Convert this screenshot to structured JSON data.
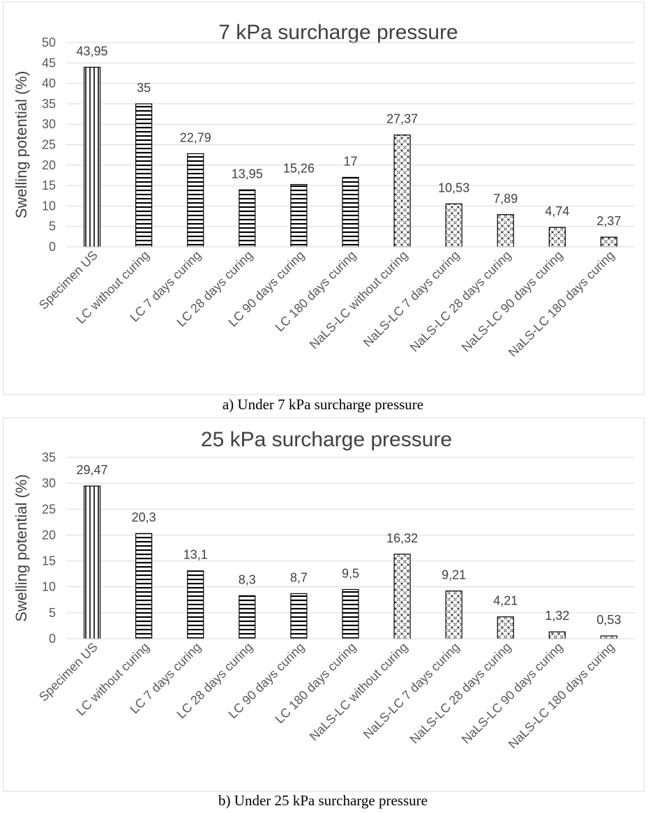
{
  "chart_data": [
    {
      "type": "bar",
      "title": "7 kPa surcharge pressure",
      "ylabel": "Swelling potential (%)",
      "xlabel": "",
      "ylim": [
        0,
        50
      ],
      "yticks": [
        0,
        5,
        10,
        15,
        20,
        25,
        30,
        35,
        40,
        45,
        50
      ],
      "grid": true,
      "categories": [
        "Specimen US",
        "LC without curing",
        "LC 7 days curing",
        "LC 28 days curing",
        "LC 90 days curing",
        "LC 180 days curing",
        "NaLS-LC without curing",
        "NaLS-LC 7 days curing",
        "NaLS-LC 28 days curing",
        "NaLS-LC 90 days curing",
        "NaLS-LC 180 days curing"
      ],
      "values": [
        43.95,
        35,
        22.79,
        13.95,
        15.26,
        17,
        27.37,
        10.53,
        7.89,
        4.74,
        2.37
      ],
      "value_labels": [
        "43,95",
        "35",
        "22,79",
        "13,95",
        "15,26",
        "17",
        "27,37",
        "10,53",
        "7,89",
        "4,74",
        "2,37"
      ],
      "patterns": [
        "vertical",
        "horizontal",
        "horizontal",
        "horizontal",
        "horizontal",
        "horizontal",
        "diagonal-cross",
        "diagonal-cross",
        "diagonal-cross",
        "diagonal-cross",
        "diagonal-cross"
      ],
      "caption": "a) Under 7 kPa surcharge pressure"
    },
    {
      "type": "bar",
      "title": "25 kPa surcharge pressure",
      "ylabel": "Swelling potential (%)",
      "xlabel": "",
      "ylim": [
        0,
        35
      ],
      "yticks": [
        0,
        5,
        10,
        15,
        20,
        25,
        30,
        35
      ],
      "grid": true,
      "categories": [
        "Specimen US",
        "LC without curing",
        "LC 7 days curing",
        "LC 28 days curing",
        "LC 90 days curing",
        "LC 180 days curing",
        "NaLS-LC without curing",
        "NaLS-LC 7 days curing",
        "NaLS-LC 28 days curing",
        "NaLS-LC 90 days curing",
        "NaLS-LC 180 days curing"
      ],
      "values": [
        29.47,
        20.3,
        13.1,
        8.3,
        8.7,
        9.5,
        16.32,
        9.21,
        4.21,
        1.32,
        0.53
      ],
      "value_labels": [
        "29,47",
        "20,3",
        "13,1",
        "8,3",
        "8,7",
        "9,5",
        "16,32",
        "9,21",
        "4,21",
        "1,32",
        "0,53"
      ],
      "patterns": [
        "vertical",
        "horizontal",
        "horizontal",
        "horizontal",
        "horizontal",
        "horizontal",
        "diagonal-cross",
        "diagonal-cross",
        "diagonal-cross",
        "diagonal-cross",
        "diagonal-cross"
      ],
      "caption": "b) Under 25 kPa surcharge pressure"
    }
  ]
}
